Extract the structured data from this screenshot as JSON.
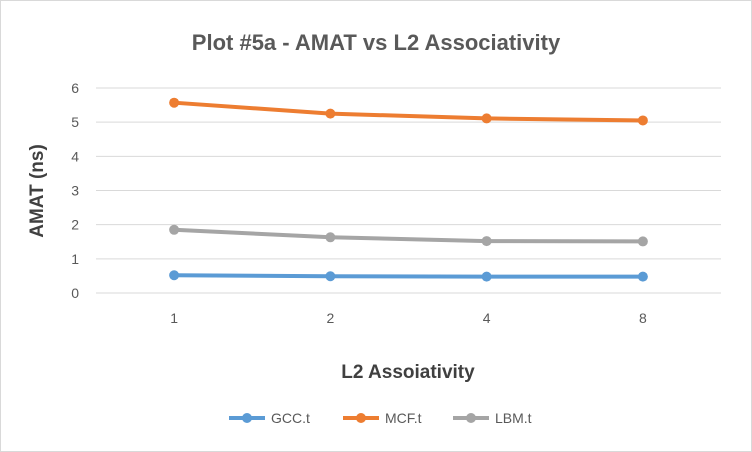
{
  "chart_data": {
    "type": "line",
    "title": "Plot #5a - AMAT vs L2 Associativity",
    "xlabel": "L2 Assoiativity",
    "ylabel": "AMAT (ns)",
    "categories": [
      "1",
      "2",
      "4",
      "8"
    ],
    "ylim": [
      0,
      6
    ],
    "yticks": [
      "0",
      "1",
      "2",
      "3",
      "4",
      "5",
      "6"
    ],
    "grid": true,
    "legend": "bottom",
    "series": [
      {
        "name": "GCC.t",
        "color": "#5b9bd5",
        "values": [
          0.52,
          0.49,
          0.48,
          0.48
        ]
      },
      {
        "name": "MCF.t",
        "color": "#ed7d31",
        "values": [
          5.57,
          5.25,
          5.11,
          5.05
        ]
      },
      {
        "name": "LBM.t",
        "color": "#a5a5a5",
        "values": [
          1.85,
          1.63,
          1.52,
          1.51
        ]
      }
    ]
  }
}
